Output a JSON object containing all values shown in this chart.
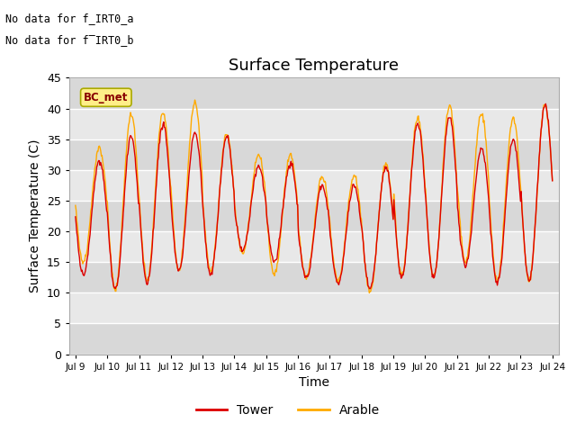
{
  "title": "Surface Temperature",
  "xlabel": "Time",
  "ylabel": "Surface Temperature (C)",
  "ylim": [
    0,
    45
  ],
  "yticks": [
    0,
    5,
    10,
    15,
    20,
    25,
    30,
    35,
    40,
    45
  ],
  "x_tick_labels": [
    "Jul 9",
    "Jul 10",
    "Jul 11",
    "Jul 12",
    "Jul 13",
    "Jul 14",
    "Jul 15",
    "Jul 16",
    "Jul 17",
    "Jul 18",
    "Jul 19",
    "Jul 20",
    "Jul 21",
    "Jul 22",
    "Jul 23",
    "Jul 24"
  ],
  "tower_color": "#dd0000",
  "arable_color": "#ffaa00",
  "bc_met_color": "#ffee88",
  "bc_met_border": "#aaaa00",
  "bc_met_text": "#880000",
  "annotation_text_1": "No data for f_IRT0_a",
  "annotation_text_2": "No data for f̅IRT0_b",
  "plot_bg_light": "#e8e8e8",
  "plot_bg_dark": "#d8d8d8",
  "grid_color": "#ffffff",
  "legend_tower": "Tower",
  "legend_arable": "Arable",
  "title_fontsize": 13,
  "axis_fontsize": 10,
  "day_mins": [
    13.0,
    10.5,
    11.5,
    13.5,
    13.0,
    17.0,
    15.0,
    12.5,
    11.5,
    10.5,
    12.5,
    12.5,
    14.5,
    11.5,
    12.0
  ],
  "day_maxs": [
    31.5,
    35.5,
    37.5,
    36.0,
    35.5,
    30.5,
    31.0,
    27.5,
    27.5,
    30.5,
    37.5,
    38.5,
    33.5,
    35.0,
    40.5
  ],
  "day_maxs_ar": [
    33.5,
    39.0,
    39.5,
    41.0,
    36.0,
    32.5,
    32.5,
    29.0,
    29.0,
    31.0,
    38.5,
    40.5,
    39.0,
    38.5,
    40.5
  ],
  "day_mins_ar": [
    15.0,
    10.5,
    12.0,
    13.5,
    13.5,
    16.5,
    13.0,
    12.5,
    12.0,
    10.0,
    13.0,
    12.5,
    15.0,
    12.0,
    12.0
  ]
}
